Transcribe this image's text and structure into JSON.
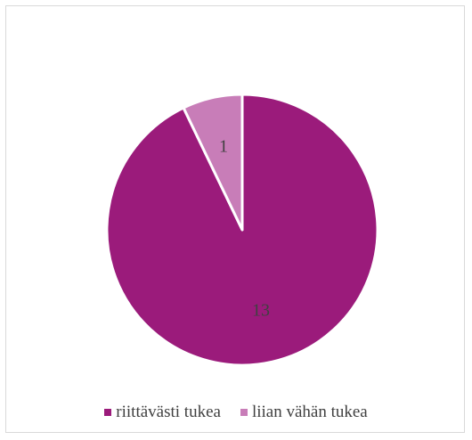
{
  "chart_data": {
    "type": "pie",
    "categories": [
      "riittävästi tukea",
      "liian vähän tukea"
    ],
    "values": [
      13,
      1
    ],
    "colors": [
      "#9b1b7b",
      "#c87db8"
    ],
    "data_labels": [
      "13",
      "1"
    ],
    "title": "",
    "legend": "bottom",
    "start_angle_deg": 0,
    "direction": "clockwise"
  }
}
